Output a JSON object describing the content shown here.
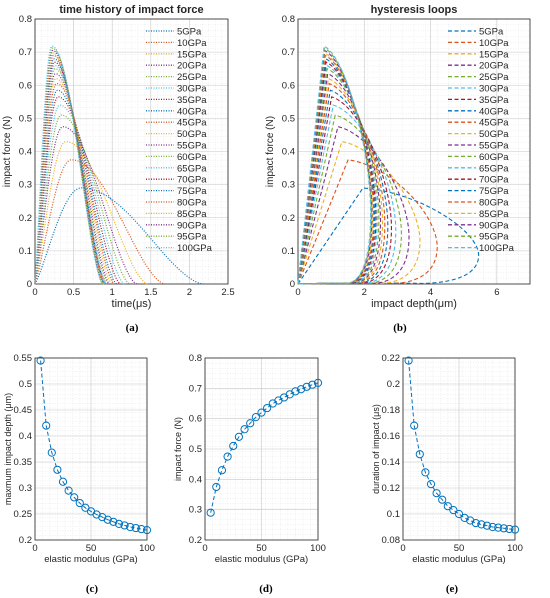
{
  "chart_data": [
    {
      "panel": "a",
      "type": "line",
      "title": "time history of impact force",
      "xlabel": "time(μs)",
      "ylabel": "impact force (N)",
      "xlim": [
        0,
        2.5
      ],
      "ylim": [
        0,
        0.8
      ],
      "xticks": [
        "0",
        "0.5",
        "1",
        "1.5",
        "2",
        "2.5"
      ],
      "yticks": [
        "0",
        "0.1",
        "0.2",
        "0.3",
        "0.4",
        "0.5",
        "0.6",
        "0.7",
        "0.8"
      ],
      "grid": true,
      "legend_position": "top-right",
      "line_style": "dotted",
      "series": [
        {
          "name": "5GPa",
          "color": "#0072bd",
          "peak_time": 0.6,
          "peak_force": 0.29,
          "duration": 2.18
        },
        {
          "name": "10GPa",
          "color": "#d95319",
          "peak_time": 0.47,
          "peak_force": 0.375,
          "duration": 1.68
        },
        {
          "name": "15GPa",
          "color": "#edb120",
          "peak_time": 0.4,
          "peak_force": 0.43,
          "duration": 1.46
        },
        {
          "name": "20GPa",
          "color": "#7e2f8e",
          "peak_time": 0.36,
          "peak_force": 0.475,
          "duration": 1.32
        },
        {
          "name": "25GPa",
          "color": "#77ac30",
          "peak_time": 0.34,
          "peak_force": 0.51,
          "duration": 1.23
        },
        {
          "name": "30GPa",
          "color": "#4dbeee",
          "peak_time": 0.32,
          "peak_force": 0.54,
          "duration": 1.16
        },
        {
          "name": "35GPa",
          "color": "#a2142f",
          "peak_time": 0.3,
          "peak_force": 0.565,
          "duration": 1.11
        },
        {
          "name": "40GPa",
          "color": "#0072bd",
          "peak_time": 0.29,
          "peak_force": 0.585,
          "duration": 1.06
        },
        {
          "name": "45GPa",
          "color": "#d95319",
          "peak_time": 0.28,
          "peak_force": 0.605,
          "duration": 1.03
        },
        {
          "name": "50GPa",
          "color": "#edb120",
          "peak_time": 0.27,
          "peak_force": 0.62,
          "duration": 1.0
        },
        {
          "name": "55GPa",
          "color": "#7e2f8e",
          "peak_time": 0.265,
          "peak_force": 0.635,
          "duration": 0.97
        },
        {
          "name": "60GPa",
          "color": "#77ac30",
          "peak_time": 0.26,
          "peak_force": 0.65,
          "duration": 0.95
        },
        {
          "name": "65GPa",
          "color": "#4dbeee",
          "peak_time": 0.255,
          "peak_force": 0.66,
          "duration": 0.93
        },
        {
          "name": "70GPa",
          "color": "#a2142f",
          "peak_time": 0.25,
          "peak_force": 0.67,
          "duration": 0.92
        },
        {
          "name": "75GPa",
          "color": "#0072bd",
          "peak_time": 0.245,
          "peak_force": 0.68,
          "duration": 0.91
        },
        {
          "name": "80GPa",
          "color": "#d95319",
          "peak_time": 0.24,
          "peak_force": 0.69,
          "duration": 0.9
        },
        {
          "name": "85GPa",
          "color": "#edb120",
          "peak_time": 0.235,
          "peak_force": 0.697,
          "duration": 0.895
        },
        {
          "name": "90GPa",
          "color": "#7e2f8e",
          "peak_time": 0.23,
          "peak_force": 0.705,
          "duration": 0.89
        },
        {
          "name": "95GPa",
          "color": "#77ac30",
          "peak_time": 0.225,
          "peak_force": 0.712,
          "duration": 0.885
        },
        {
          "name": "100GPa",
          "color": "#4dbeee",
          "peak_time": 0.22,
          "peak_force": 0.718,
          "duration": 0.88
        }
      ]
    },
    {
      "panel": "b",
      "type": "line",
      "title": "hysteresis loops",
      "xlabel": "impact depth(μm)",
      "ylabel": "impact force (N)",
      "xlim": [
        0,
        7
      ],
      "ylim": [
        0,
        0.8
      ],
      "xticks": [
        "0",
        "2",
        "4",
        "6"
      ],
      "yticks": [
        "0",
        "0.1",
        "0.2",
        "0.3",
        "0.4",
        "0.5",
        "0.6",
        "0.7",
        "0.8"
      ],
      "grid": true,
      "legend_position": "top-right",
      "line_style": "dashed",
      "series": [
        {
          "name": "5GPa",
          "color": "#0072bd",
          "max_depth": 5.45,
          "peak_force": 0.29
        },
        {
          "name": "10GPa",
          "color": "#d95319",
          "max_depth": 4.2,
          "peak_force": 0.375
        },
        {
          "name": "15GPa",
          "color": "#edb120",
          "max_depth": 3.68,
          "peak_force": 0.43
        },
        {
          "name": "20GPa",
          "color": "#7e2f8e",
          "max_depth": 3.35,
          "peak_force": 0.475
        },
        {
          "name": "25GPa",
          "color": "#77ac30",
          "max_depth": 3.12,
          "peak_force": 0.51
        },
        {
          "name": "30GPa",
          "color": "#4dbeee",
          "max_depth": 2.95,
          "peak_force": 0.54
        },
        {
          "name": "35GPa",
          "color": "#a2142f",
          "max_depth": 2.82,
          "peak_force": 0.565
        },
        {
          "name": "40GPa",
          "color": "#0072bd",
          "max_depth": 2.71,
          "peak_force": 0.585
        },
        {
          "name": "45GPa",
          "color": "#d95319",
          "max_depth": 2.62,
          "peak_force": 0.605
        },
        {
          "name": "50GPa",
          "color": "#edb120",
          "max_depth": 2.55,
          "peak_force": 0.62
        },
        {
          "name": "55GPa",
          "color": "#7e2f8e",
          "max_depth": 2.49,
          "peak_force": 0.635
        },
        {
          "name": "60GPa",
          "color": "#77ac30",
          "max_depth": 2.44,
          "peak_force": 0.65
        },
        {
          "name": "65GPa",
          "color": "#4dbeee",
          "max_depth": 2.39,
          "peak_force": 0.66
        },
        {
          "name": "70GPa",
          "color": "#a2142f",
          "max_depth": 2.35,
          "peak_force": 0.67
        },
        {
          "name": "75GPa",
          "color": "#0072bd",
          "max_depth": 2.31,
          "peak_force": 0.68
        },
        {
          "name": "80GPa",
          "color": "#d95319",
          "max_depth": 2.28,
          "peak_force": 0.69
        },
        {
          "name": "85GPa",
          "color": "#edb120",
          "max_depth": 2.25,
          "peak_force": 0.697
        },
        {
          "name": "90GPa",
          "color": "#7e2f8e",
          "max_depth": 2.23,
          "peak_force": 0.705
        },
        {
          "name": "95GPa",
          "color": "#77ac30",
          "max_depth": 2.21,
          "peak_force": 0.712
        },
        {
          "name": "100GPa",
          "color": "#4dbeee",
          "max_depth": 2.19,
          "peak_force": 0.718
        }
      ]
    },
    {
      "panel": "c",
      "type": "scatter",
      "title": "",
      "xlabel": "elastic modulus (GPa)",
      "ylabel": "maxmum impact depth (μm)",
      "xlim": [
        0,
        100
      ],
      "ylim": [
        0.2,
        0.55
      ],
      "xticks": [
        "0",
        "50",
        "100"
      ],
      "yticks": [
        "0.2",
        "0.25",
        "0.3",
        "0.35",
        "0.4",
        "0.45",
        "0.5",
        "0.55"
      ],
      "grid": true,
      "color": "#0072bd",
      "x": [
        5,
        10,
        15,
        20,
        25,
        30,
        35,
        40,
        45,
        50,
        55,
        60,
        65,
        70,
        75,
        80,
        85,
        90,
        95,
        100
      ],
      "y": [
        0.545,
        0.42,
        0.368,
        0.335,
        0.312,
        0.295,
        0.282,
        0.271,
        0.262,
        0.255,
        0.249,
        0.244,
        0.239,
        0.235,
        0.231,
        0.228,
        0.225,
        0.223,
        0.221,
        0.219
      ]
    },
    {
      "panel": "d",
      "type": "scatter",
      "title": "",
      "xlabel": "elastic modulus (GPa)",
      "ylabel": "impact force (N)",
      "xlim": [
        0,
        100
      ],
      "ylim": [
        0.2,
        0.8
      ],
      "xticks": [
        "0",
        "50",
        "100"
      ],
      "yticks": [
        "0.2",
        "0.3",
        "0.4",
        "0.5",
        "0.6",
        "0.7",
        "0.8"
      ],
      "grid": true,
      "color": "#0072bd",
      "x": [
        5,
        10,
        15,
        20,
        25,
        30,
        35,
        40,
        45,
        50,
        55,
        60,
        65,
        70,
        75,
        80,
        85,
        90,
        95,
        100
      ],
      "y": [
        0.29,
        0.375,
        0.43,
        0.475,
        0.51,
        0.54,
        0.565,
        0.585,
        0.605,
        0.62,
        0.635,
        0.65,
        0.66,
        0.67,
        0.68,
        0.69,
        0.697,
        0.705,
        0.712,
        0.718
      ]
    },
    {
      "panel": "e",
      "type": "scatter",
      "title": "",
      "xlabel": "elastic modulus (GPa)",
      "ylabel": "duration of impact (μs)",
      "xlim": [
        0,
        100
      ],
      "ylim": [
        0.08,
        0.22
      ],
      "xticks": [
        "0",
        "50",
        "100"
      ],
      "yticks": [
        "0.08",
        "0.1",
        "0.12",
        "0.14",
        "0.16",
        "0.18",
        "0.2",
        "0.22"
      ],
      "grid": true,
      "color": "#0072bd",
      "x": [
        5,
        10,
        15,
        20,
        25,
        30,
        35,
        40,
        45,
        50,
        55,
        60,
        65,
        70,
        75,
        80,
        85,
        90,
        95,
        100
      ],
      "y": [
        0.218,
        0.168,
        0.146,
        0.132,
        0.123,
        0.116,
        0.111,
        0.106,
        0.103,
        0.1,
        0.097,
        0.095,
        0.093,
        0.092,
        0.091,
        0.09,
        0.0895,
        0.089,
        0.0885,
        0.088
      ]
    }
  ],
  "captions": [
    "(a)",
    "(b)",
    "(c)",
    "(d)",
    "(e)"
  ]
}
